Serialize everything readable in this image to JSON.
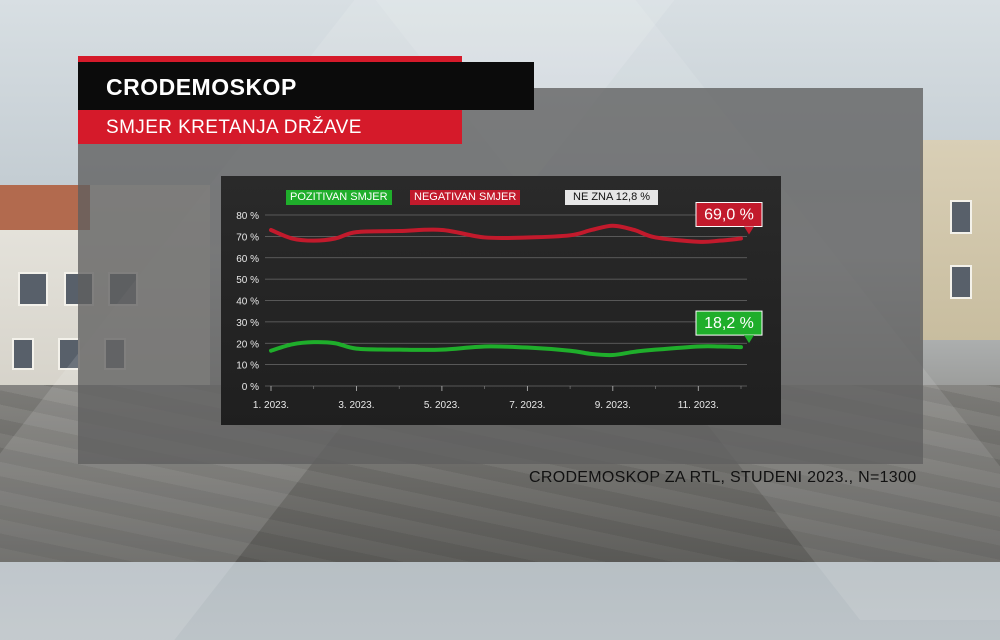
{
  "header": {
    "title": "CRODEMOSKOP",
    "subtitle": "SMJER KRETANJA DRŽAVE"
  },
  "source": "CRODEMOSKOP ZA RTL, STUDENI 2023., N=1300",
  "colors": {
    "positive": "#1fae2b",
    "negative": "#c21a2c",
    "brand_red": "#d51a2a"
  },
  "chart_data": {
    "type": "line",
    "legend": {
      "positive": "POZITIVAN SMJER",
      "negative": "NEGATIVAN SMJER",
      "unknown": "NE ZNA 12,8 %"
    },
    "x_ticks": [
      "1. 2023.",
      "3. 2023.",
      "5. 2023.",
      "7. 2023.",
      "9. 2023.",
      "11. 2023."
    ],
    "y_ticks": [
      "80 %",
      "70 %",
      "60 %",
      "50 %",
      "40 %",
      "30 %",
      "20 %",
      "10 %",
      "0 %"
    ],
    "ylim": [
      0,
      80
    ],
    "x": [
      0,
      0.5,
      1,
      1.5,
      2,
      3,
      4,
      5,
      6,
      7,
      7.5,
      8,
      8.5,
      9,
      10,
      10.5,
      11
    ],
    "series": [
      {
        "name": "NEGATIVAN SMJER",
        "color": "#c21a2c",
        "values": [
          73,
          69,
          68,
          69,
          72,
          72.5,
          73,
          69.5,
          69.5,
          70.5,
          73,
          75,
          73,
          69.5,
          67.5,
          68,
          69
        ]
      },
      {
        "name": "POZITIVAN SMJER",
        "color": "#1fae2b",
        "values": [
          16.5,
          19.5,
          20.5,
          20,
          17.5,
          17,
          17,
          18.5,
          18,
          16.5,
          15,
          14.5,
          16,
          17,
          18.5,
          18.5,
          18.2
        ]
      }
    ],
    "end_labels": {
      "negative": "69,0 %",
      "positive": "18,2 %"
    },
    "grid": true
  }
}
